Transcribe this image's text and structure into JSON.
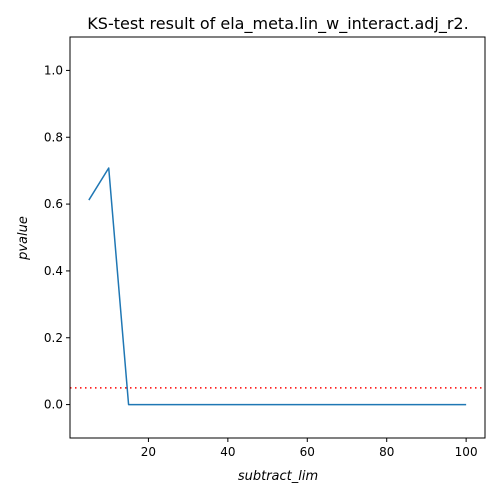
{
  "chart_data": {
    "type": "line",
    "title": "KS-test result of ela_meta.lin_w_interact.adj_r2.",
    "xlabel": "subtract_lim",
    "ylabel": "pvalue",
    "xlim": [
      0.25,
      104.75
    ],
    "ylim": [
      -0.1,
      1.1
    ],
    "x_ticks": [
      20,
      40,
      60,
      80,
      100
    ],
    "x_tick_labels": [
      "20",
      "40",
      "60",
      "80",
      "100"
    ],
    "y_ticks": [
      0.0,
      0.2,
      0.4,
      0.6,
      0.8,
      1.0
    ],
    "y_tick_labels": [
      "0.0",
      "0.2",
      "0.4",
      "0.6",
      "0.8",
      "1.0"
    ],
    "grid": false,
    "series": [
      {
        "x": [
          5,
          10,
          15,
          20,
          25,
          30,
          35,
          40,
          45,
          50,
          55,
          60,
          65,
          70,
          75,
          80,
          85,
          90,
          95,
          100
        ],
        "values": [
          0.612,
          0.708,
          0.0,
          0.0,
          0.0,
          0.0,
          0.0,
          0.0,
          0.0,
          0.0,
          0.0,
          0.0,
          0.0,
          0.0,
          0.0,
          0.0,
          0.0,
          0.0,
          0.0,
          0.0
        ],
        "color": "#1f77b4",
        "style": "solid"
      }
    ],
    "reference_lines": [
      {
        "orientation": "horizontal",
        "y": 0.05,
        "color": "#ff0000",
        "style": "dotted"
      }
    ]
  }
}
